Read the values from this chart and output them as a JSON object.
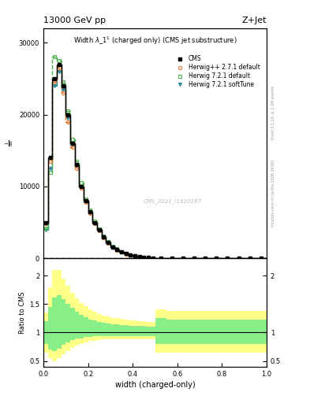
{
  "title": "Width $\\lambda$_1$^1$ (charged only) (CMS jet substructure)",
  "header_left": "13000 GeV pp",
  "header_right": "Z+Jet",
  "xlabel": "width (charged-only)",
  "ylabel_main_lines": [
    "1",
    "/ $\\mathregular{d}$N / $\\mathregular{d}p_T$ $\\mathregular{d}\\lambda$"
  ],
  "ylabel_ratio": "Ratio to CMS",
  "watermark": "CMS_2021_I1920187",
  "rivet_label": "Rivet 3.1.10, ≥ 2.3M events",
  "mcplots_label": "mcplots.cern.ch [arXiv:1306.3436]",
  "bin_edges": [
    0.0,
    0.02,
    0.04,
    0.06,
    0.08,
    0.1,
    0.12,
    0.14,
    0.16,
    0.18,
    0.2,
    0.22,
    0.24,
    0.26,
    0.28,
    0.3,
    0.32,
    0.34,
    0.36,
    0.38,
    0.4,
    0.42,
    0.44,
    0.46,
    0.48,
    0.5,
    0.55,
    0.6,
    0.65,
    0.7,
    0.75,
    0.8,
    0.85,
    0.9,
    0.95,
    1.0
  ],
  "cms_values": [
    5000,
    14000,
    25000,
    27000,
    24000,
    20000,
    16000,
    13000,
    10000,
    8000,
    6500,
    5000,
    4000,
    3000,
    2200,
    1600,
    1200,
    900,
    650,
    450,
    320,
    230,
    160,
    110,
    80,
    60,
    40,
    25,
    15,
    8,
    4,
    2,
    1,
    0.5,
    0.2
  ],
  "herwig_pp_values": [
    4800,
    13500,
    24500,
    26500,
    23000,
    19000,
    15500,
    12500,
    9800,
    7800,
    6300,
    4900,
    3900,
    2900,
    2100,
    1550,
    1150,
    860,
    620,
    430,
    310,
    220,
    155,
    105,
    75,
    55,
    38,
    23,
    14,
    7,
    3.5,
    1.8,
    0.9,
    0.4,
    0.18
  ],
  "herwig721_def_values": [
    4200,
    12000,
    28000,
    27500,
    24500,
    20500,
    16500,
    13500,
    10500,
    8200,
    6700,
    5200,
    4100,
    3100,
    2300,
    1700,
    1300,
    950,
    680,
    480,
    340,
    245,
    170,
    120,
    85,
    65,
    45,
    28,
    17,
    9,
    4.5,
    2.2,
    1.1,
    0.55,
    0.22
  ],
  "herwig721_soft_values": [
    4000,
    12500,
    24000,
    26000,
    23500,
    19500,
    15800,
    12800,
    10000,
    7900,
    6400,
    5000,
    3950,
    2950,
    2150,
    1580,
    1180,
    880,
    635,
    440,
    315,
    225,
    158,
    108,
    77,
    57,
    39,
    24,
    14.5,
    7.5,
    3.8,
    1.9,
    0.95,
    0.45,
    0.19
  ],
  "ratio_yellow_lo": [
    0.65,
    0.55,
    0.5,
    0.55,
    0.62,
    0.68,
    0.73,
    0.77,
    0.8,
    0.83,
    0.85,
    0.86,
    0.87,
    0.88,
    0.88,
    0.88,
    0.88,
    0.88,
    0.88,
    0.88,
    0.88,
    0.88,
    0.88,
    0.88,
    0.88,
    0.65,
    0.65,
    0.65,
    0.65,
    0.65,
    0.65,
    0.65,
    0.65,
    0.65,
    0.65
  ],
  "ratio_yellow_hi": [
    1.35,
    1.8,
    2.1,
    2.1,
    1.95,
    1.82,
    1.7,
    1.6,
    1.52,
    1.46,
    1.4,
    1.36,
    1.33,
    1.3,
    1.28,
    1.26,
    1.25,
    1.24,
    1.23,
    1.22,
    1.21,
    1.2,
    1.2,
    1.19,
    1.19,
    1.4,
    1.38,
    1.38,
    1.38,
    1.38,
    1.38,
    1.38,
    1.38,
    1.38,
    1.38
  ],
  "ratio_green_lo": [
    0.8,
    0.7,
    0.68,
    0.72,
    0.78,
    0.83,
    0.87,
    0.89,
    0.9,
    0.92,
    0.93,
    0.94,
    0.94,
    0.94,
    0.94,
    0.94,
    0.94,
    0.94,
    0.94,
    0.94,
    0.94,
    0.94,
    0.94,
    0.94,
    0.94,
    0.8,
    0.8,
    0.8,
    0.8,
    0.8,
    0.8,
    0.8,
    0.8,
    0.8,
    0.8
  ],
  "ratio_green_hi": [
    1.2,
    1.45,
    1.62,
    1.65,
    1.58,
    1.5,
    1.43,
    1.37,
    1.31,
    1.27,
    1.23,
    1.21,
    1.19,
    1.17,
    1.16,
    1.15,
    1.14,
    1.13,
    1.13,
    1.12,
    1.12,
    1.11,
    1.11,
    1.1,
    1.1,
    1.25,
    1.23,
    1.23,
    1.23,
    1.23,
    1.23,
    1.23,
    1.23,
    1.23,
    1.23
  ],
  "ylim_main": [
    0,
    32000
  ],
  "ylim_ratio": [
    0.4,
    2.3
  ],
  "yticks_main": [
    0,
    10000,
    20000,
    30000
  ],
  "ytick_labels_main": [
    "0",
    "10000",
    "20000",
    "30000"
  ],
  "color_cms": "#000000",
  "color_herwig_pp": "#E8772A",
  "color_herwig721_def": "#4CAF50",
  "color_herwig721_soft": "#2E8B9A",
  "color_yellow": "#FFFF88",
  "color_green": "#88EE88",
  "bg_color": "#ffffff"
}
